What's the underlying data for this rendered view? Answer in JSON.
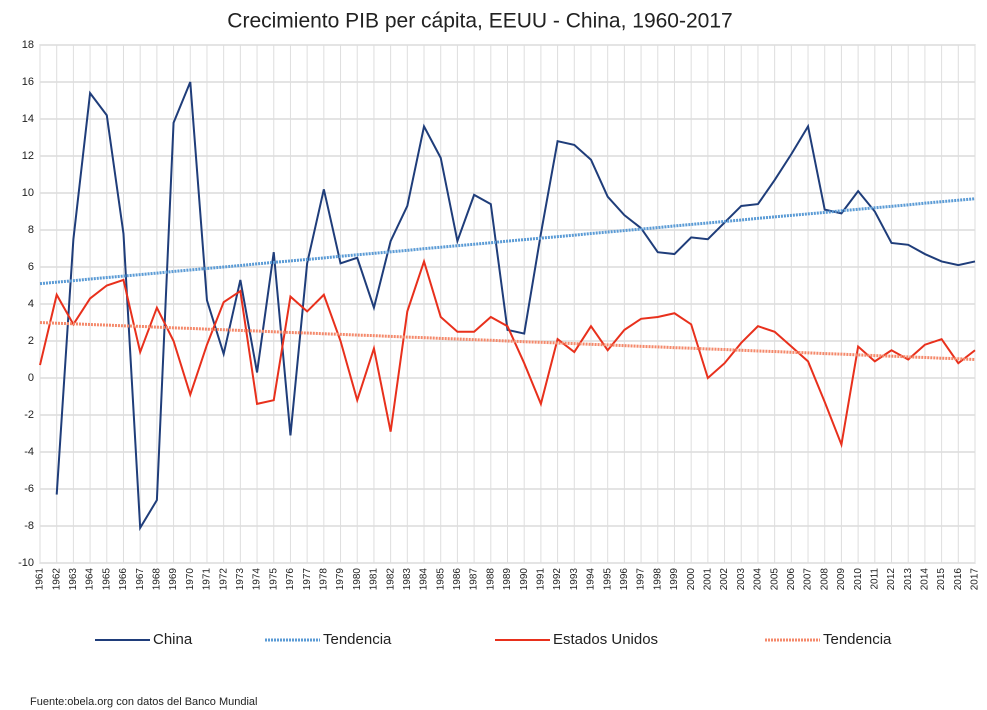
{
  "chart_data": {
    "type": "line",
    "title": "Crecimiento PIB per cápita, EEUU - China, 1960-2017",
    "note": "Fuente:obela.org con datos del Banco Mundial",
    "categories": [
      "1961",
      "1962",
      "1963",
      "1964",
      "1965",
      "1966",
      "1967",
      "1968",
      "1969",
      "1970",
      "1971",
      "1972",
      "1973",
      "1974",
      "1975",
      "1976",
      "1977",
      "1978",
      "1979",
      "1980",
      "1981",
      "1982",
      "1983",
      "1984",
      "1985",
      "1986",
      "1987",
      "1988",
      "1989",
      "1990",
      "1991",
      "1992",
      "1993",
      "1994",
      "1995",
      "1996",
      "1997",
      "1998",
      "1999",
      "2000",
      "2001",
      "2002",
      "2003",
      "2004",
      "2005",
      "2006",
      "2007",
      "2008",
      "2009",
      "2010",
      "2011",
      "2012",
      "2013",
      "2014",
      "2015",
      "2016",
      "2017"
    ],
    "series": [
      {
        "name": "China",
        "color": "#1f3d7a",
        "style": "solid",
        "values": [
          null,
          -6.3,
          7.5,
          15.4,
          14.2,
          7.8,
          -8.1,
          -6.6,
          13.8,
          16.0,
          4.2,
          1.3,
          5.3,
          0.3,
          6.8,
          -3.1,
          6.2,
          10.2,
          6.2,
          6.5,
          3.8,
          7.4,
          9.3,
          13.6,
          11.9,
          7.4,
          9.9,
          9.4,
          2.6,
          2.4,
          7.8,
          12.8,
          12.6,
          11.8,
          9.8,
          8.8,
          8.1,
          6.8,
          6.7,
          7.6,
          7.5,
          8.4,
          9.3,
          9.4,
          10.7,
          12.1,
          13.6,
          9.1,
          8.9,
          10.1,
          9.0,
          7.3,
          7.2,
          6.7,
          6.3,
          6.1,
          6.3
        ]
      },
      {
        "name": "Tendencia",
        "color": "#5b9bd5",
        "style": "dotted",
        "values": [
          5.1,
          5.18,
          5.26,
          5.35,
          5.43,
          5.51,
          5.59,
          5.67,
          5.76,
          5.84,
          5.92,
          6.0,
          6.08,
          6.17,
          6.25,
          6.33,
          6.41,
          6.49,
          6.58,
          6.66,
          6.74,
          6.82,
          6.9,
          6.99,
          7.07,
          7.15,
          7.23,
          7.31,
          7.4,
          7.48,
          7.56,
          7.64,
          7.72,
          7.81,
          7.89,
          7.97,
          8.05,
          8.13,
          8.22,
          8.3,
          8.38,
          8.46,
          8.54,
          8.63,
          8.71,
          8.79,
          8.87,
          8.95,
          9.04,
          9.12,
          9.2,
          9.28,
          9.36,
          9.45,
          9.53,
          9.61,
          9.69
        ]
      },
      {
        "name": "Estados Unidos",
        "color": "#e8301c",
        "style": "solid",
        "values": [
          0.7,
          4.5,
          2.9,
          4.3,
          5.0,
          5.3,
          1.4,
          3.8,
          2.0,
          -0.9,
          1.8,
          4.1,
          4.7,
          -1.4,
          -1.2,
          4.4,
          3.6,
          4.5,
          2.0,
          -1.2,
          1.6,
          -2.9,
          3.6,
          6.3,
          3.3,
          2.5,
          2.5,
          3.3,
          2.8,
          0.8,
          -1.4,
          2.1,
          1.4,
          2.8,
          1.5,
          2.6,
          3.2,
          3.3,
          3.5,
          2.9,
          0.0,
          0.8,
          1.9,
          2.8,
          2.5,
          1.7,
          0.9,
          -1.3,
          -3.6,
          1.7,
          0.9,
          1.5,
          1.0,
          1.8,
          2.1,
          0.8,
          1.5
        ]
      },
      {
        "name": "Tendencia",
        "color": "#f4896b",
        "style": "dotted",
        "values": [
          3.0,
          2.96,
          2.93,
          2.89,
          2.86,
          2.82,
          2.79,
          2.75,
          2.71,
          2.68,
          2.64,
          2.61,
          2.57,
          2.54,
          2.5,
          2.46,
          2.43,
          2.39,
          2.36,
          2.32,
          2.29,
          2.25,
          2.21,
          2.18,
          2.14,
          2.11,
          2.07,
          2.04,
          2.0,
          1.96,
          1.93,
          1.89,
          1.86,
          1.82,
          1.79,
          1.75,
          1.71,
          1.68,
          1.64,
          1.61,
          1.57,
          1.54,
          1.5,
          1.46,
          1.43,
          1.39,
          1.36,
          1.32,
          1.29,
          1.25,
          1.21,
          1.18,
          1.14,
          1.11,
          1.07,
          1.04,
          1.0
        ]
      }
    ],
    "ylim": [
      -10,
      18
    ],
    "yticks": [
      -10,
      -8,
      -6,
      -4,
      -2,
      0,
      2,
      4,
      6,
      8,
      10,
      12,
      14,
      16,
      18
    ],
    "grid": true,
    "legend": "bottom"
  }
}
